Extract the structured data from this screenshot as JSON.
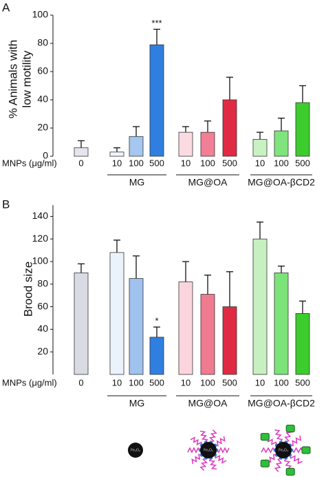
{
  "chart_data": [
    {
      "type": "bar",
      "panel_label": "A",
      "ylabel": [
        "% Animals with",
        "low motility"
      ],
      "x_prefix": "MNPs (μg/ml)",
      "categories": [
        "0",
        "10",
        "100",
        "500",
        "10",
        "100",
        "500",
        "10",
        "100",
        "500"
      ],
      "group_labels": [
        null,
        "MG",
        "MG",
        "MG",
        "MG@OA",
        "MG@OA",
        "MG@OA",
        "MG@OA-βCD2",
        "MG@OA-βCD2",
        "MG@OA-βCD2"
      ],
      "values": [
        6,
        3,
        14,
        79,
        17,
        17,
        40,
        12,
        18,
        38
      ],
      "errors": [
        5,
        3,
        7,
        11,
        4,
        8,
        16,
        5,
        9,
        12
      ],
      "annotations": [
        null,
        null,
        null,
        "***",
        null,
        null,
        null,
        null,
        null,
        null
      ],
      "colors": [
        "#e4e6ec",
        "#eef4fc",
        "#a5c7f0",
        "#2f7fe0",
        "#fbdbe2",
        "#f27f95",
        "#e02a44",
        "#c9f2c2",
        "#7ee47b",
        "#3dcc2e"
      ],
      "ylim": [
        0,
        100
      ],
      "yticks": [
        0,
        20,
        40,
        60,
        80,
        100
      ]
    },
    {
      "type": "bar",
      "panel_label": "B",
      "ylabel": [
        "Brood size"
      ],
      "x_prefix": "MNPs (μg/ml)",
      "categories": [
        "0",
        "10",
        "100",
        "500",
        "10",
        "100",
        "500",
        "10",
        "100",
        "500"
      ],
      "group_labels": [
        null,
        "MG",
        "MG",
        "MG",
        "MG@OA",
        "MG@OA",
        "MG@OA",
        "MG@OA-βCD2",
        "MG@OA-βCD2",
        "MG@OA-βCD2"
      ],
      "values": [
        90,
        108,
        85,
        33,
        82,
        71,
        60,
        120,
        90,
        54
      ],
      "errors": [
        8,
        11,
        20,
        9,
        18,
        17,
        31,
        15,
        6,
        11
      ],
      "annotations": [
        null,
        null,
        null,
        "*",
        null,
        null,
        null,
        null,
        null,
        null
      ],
      "colors": [
        "#d8dbe3",
        "#eaf2fc",
        "#9fc2ee",
        "#2f7fe0",
        "#fbd5de",
        "#f07a90",
        "#e02a44",
        "#c6f0bf",
        "#7be378",
        "#3dcc2e"
      ],
      "ylim": [
        0,
        150
      ],
      "yticks": [
        20,
        40,
        60,
        80,
        100,
        120,
        140
      ]
    }
  ],
  "nanoparticle_labels": [
    "Fe₃O₄",
    "Fe₃O₄",
    "Fe₃O₄"
  ]
}
